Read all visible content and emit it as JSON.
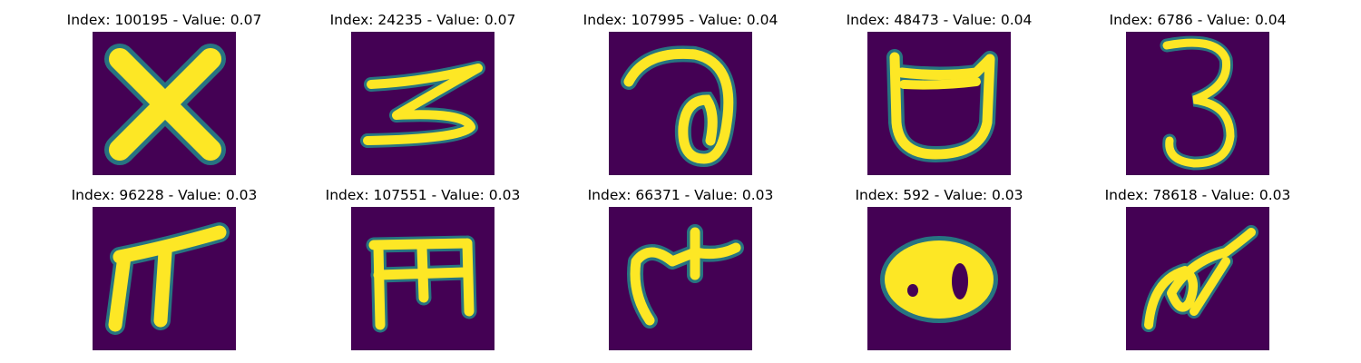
{
  "colors": {
    "background": "#440154",
    "foreground": "#fde725",
    "edge": "#21918c"
  },
  "panels": [
    {
      "title": "Index: 100195 - Value: 0.07",
      "glyph": "x-shape-icon"
    },
    {
      "title": "Index: 24235 - Value: 0.07",
      "glyph": "zigzag-s-icon"
    },
    {
      "title": "Index: 107995 - Value: 0.04",
      "glyph": "loop-a-icon"
    },
    {
      "title": "Index: 48473 - Value: 0.04",
      "glyph": "cup-shape-icon"
    },
    {
      "title": "Index: 6786 - Value: 0.04",
      "glyph": "three-shape-icon"
    },
    {
      "title": "Index: 96228 - Value: 0.03",
      "glyph": "pi-shape-icon"
    },
    {
      "title": "Index: 107551 - Value: 0.03",
      "glyph": "e-comb-shape-icon"
    },
    {
      "title": "Index: 66371 - Value: 0.03",
      "glyph": "hook-cross-shape-icon"
    },
    {
      "title": "Index: 592 - Value: 0.03",
      "glyph": "blob-eight-shape-icon"
    },
    {
      "title": "Index: 78618 - Value: 0.03",
      "glyph": "swirl-shape-icon"
    }
  ]
}
